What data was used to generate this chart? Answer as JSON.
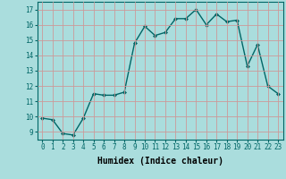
{
  "x": [
    0,
    1,
    2,
    3,
    4,
    5,
    6,
    7,
    8,
    9,
    10,
    11,
    12,
    13,
    14,
    15,
    16,
    17,
    18,
    19,
    20,
    21,
    22,
    23
  ],
  "y": [
    9.9,
    9.8,
    8.9,
    8.8,
    9.9,
    11.5,
    11.4,
    11.4,
    11.6,
    14.8,
    15.9,
    15.3,
    15.5,
    16.4,
    16.4,
    17.0,
    16.0,
    16.7,
    16.2,
    16.3,
    13.3,
    14.7,
    12.0,
    11.5
  ],
  "line_color": "#006666",
  "marker": "D",
  "marker_size": 2.0,
  "bg_color": "#aadddd",
  "grid_color": "#cc9999",
  "xlabel": "Humidex (Indice chaleur)",
  "ylim": [
    8.5,
    17.5
  ],
  "xlim": [
    -0.5,
    23.5
  ],
  "yticks": [
    9,
    10,
    11,
    12,
    13,
    14,
    15,
    16,
    17
  ],
  "xticks": [
    0,
    1,
    2,
    3,
    4,
    5,
    6,
    7,
    8,
    9,
    10,
    11,
    12,
    13,
    14,
    15,
    16,
    17,
    18,
    19,
    20,
    21,
    22,
    23
  ],
  "tick_fontsize": 5.5,
  "xlabel_fontsize": 7.0,
  "line_width": 1.0
}
